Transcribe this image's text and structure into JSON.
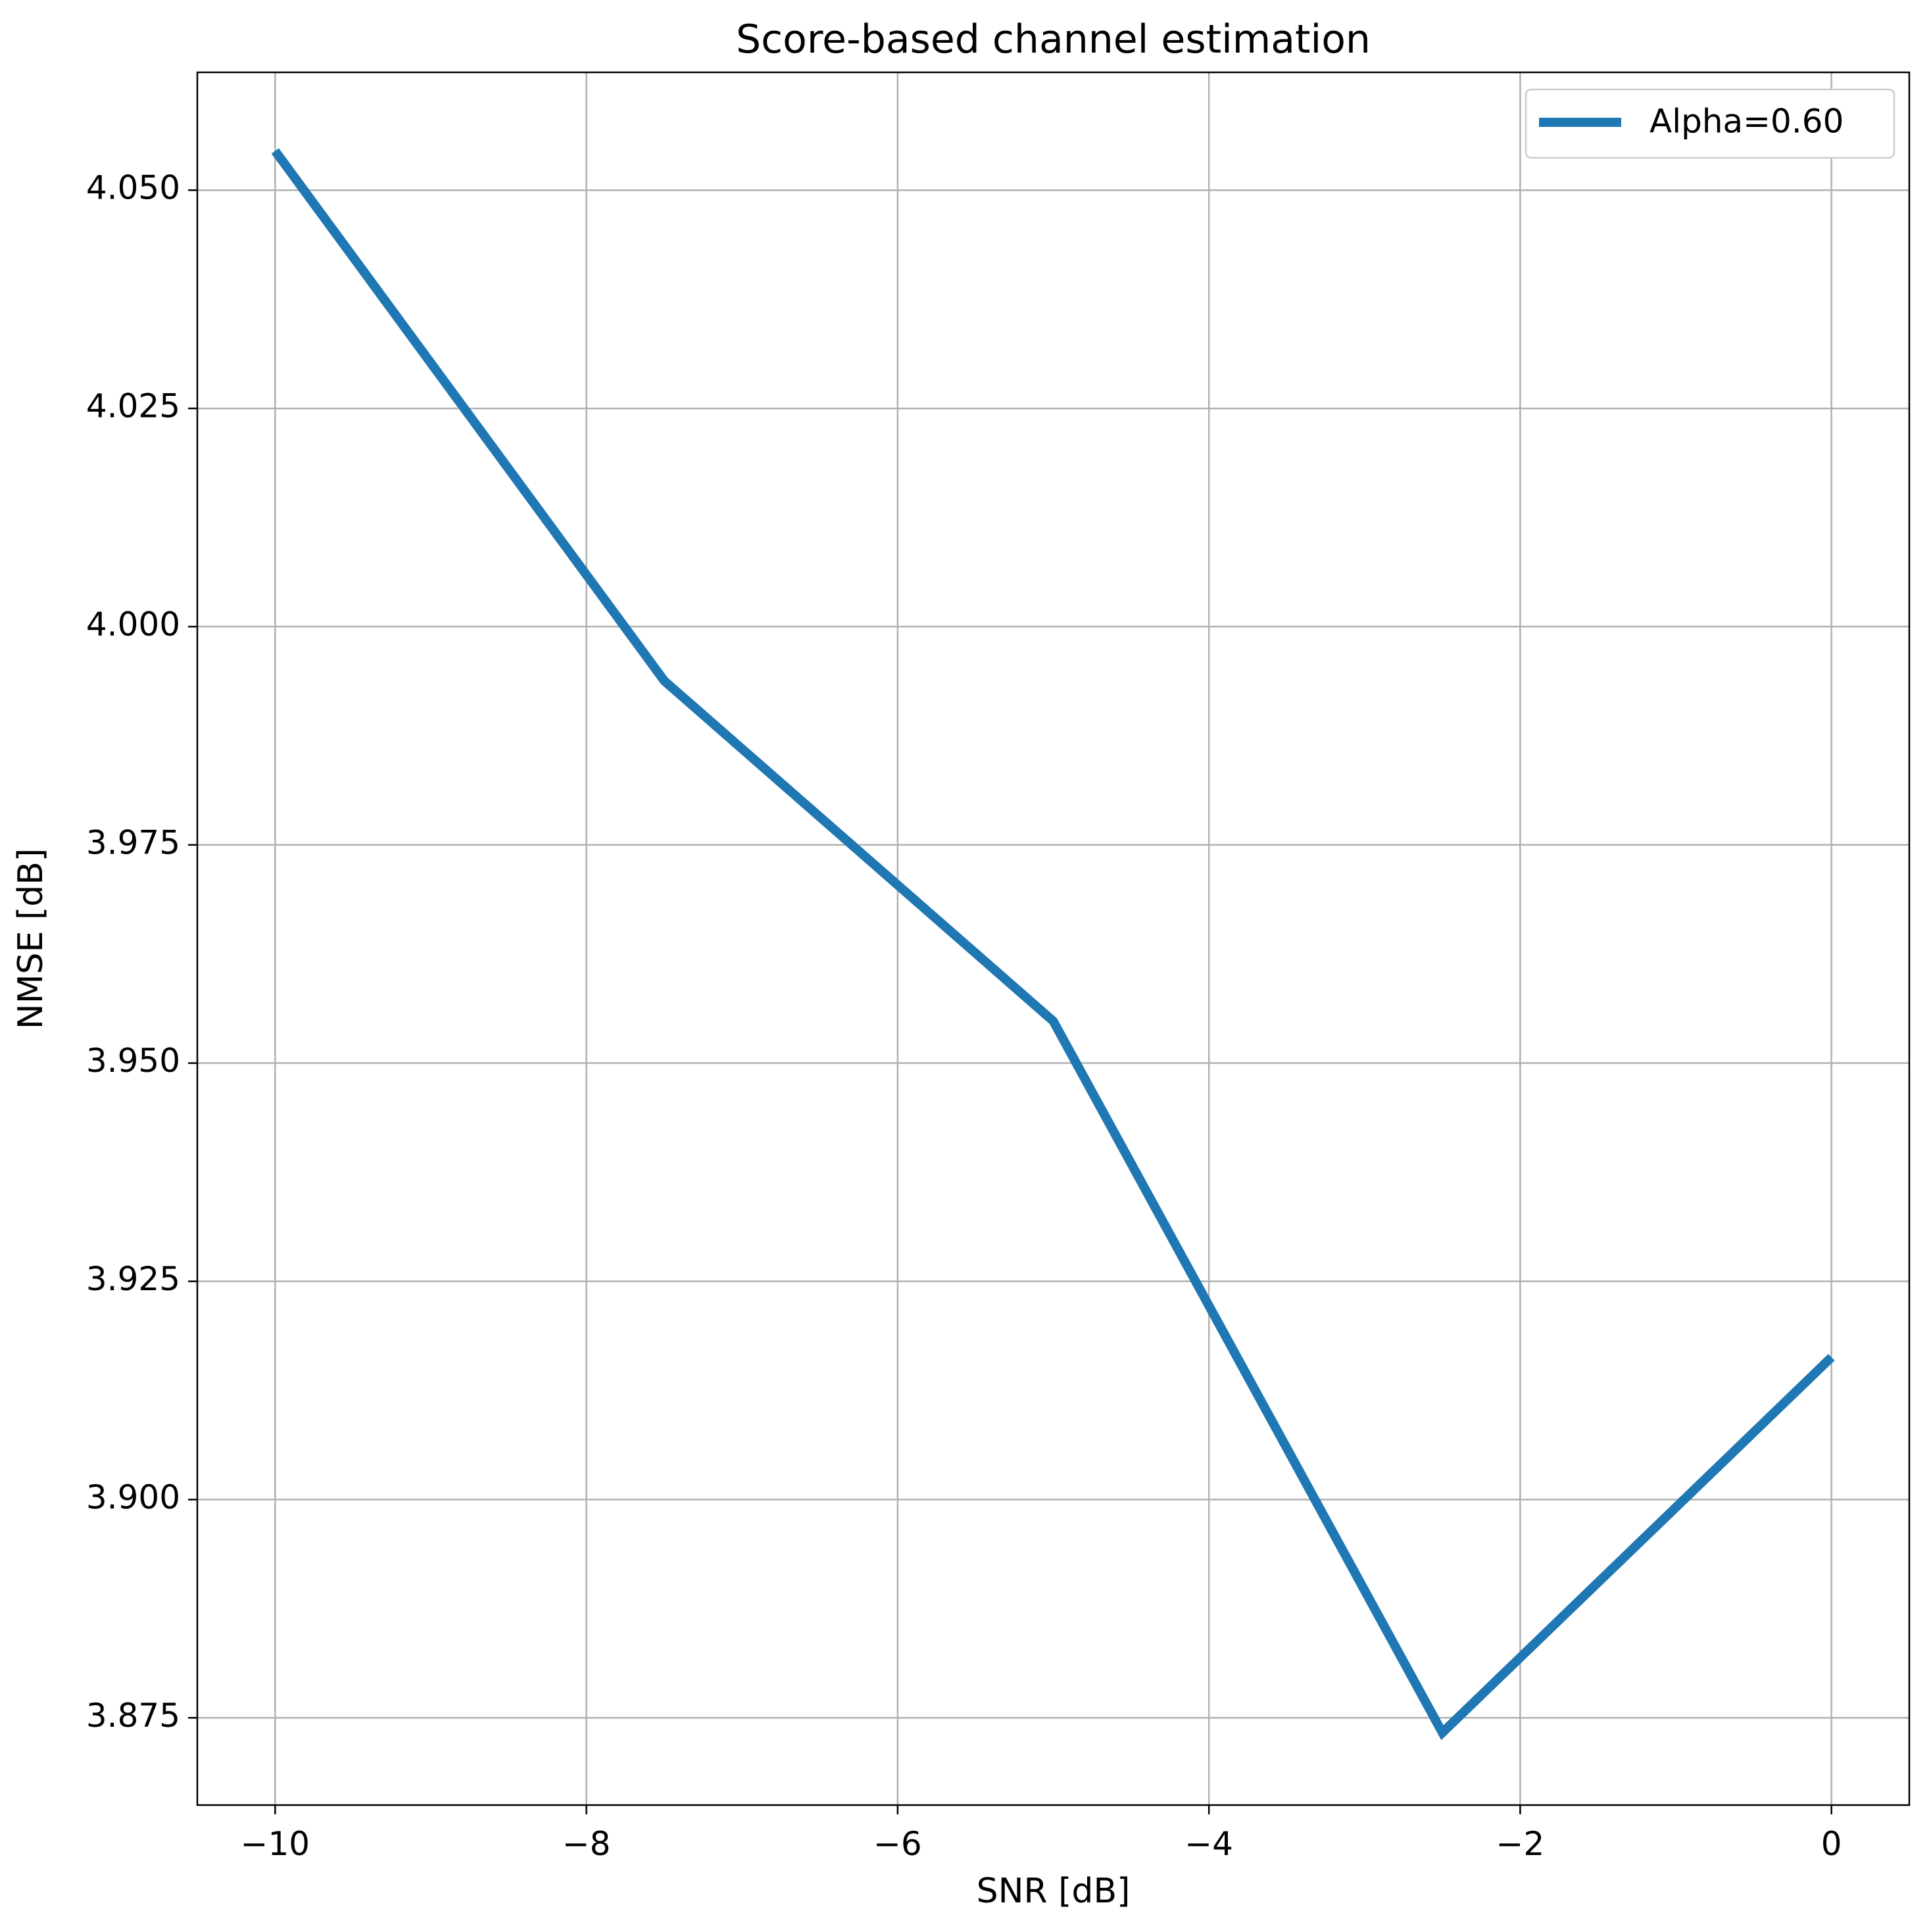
{
  "chart_data": {
    "type": "line",
    "title": "Score-based channel estimation",
    "xlabel": "SNR [dB]",
    "ylabel": "NMSE [dB]",
    "xlim": [
      -10.5,
      0.5
    ],
    "ylim": [
      3.865,
      4.0635
    ],
    "x_ticks": [
      {
        "value": -10,
        "label": "−10"
      },
      {
        "value": -8,
        "label": "−8"
      },
      {
        "value": -6,
        "label": "−6"
      },
      {
        "value": -4,
        "label": "−4"
      },
      {
        "value": -2,
        "label": "−2"
      },
      {
        "value": 0,
        "label": "0"
      }
    ],
    "y_ticks": [
      {
        "value": 3.875,
        "label": "3.875"
      },
      {
        "value": 3.9,
        "label": "3.900"
      },
      {
        "value": 3.925,
        "label": "3.925"
      },
      {
        "value": 3.95,
        "label": "3.950"
      },
      {
        "value": 3.975,
        "label": "3.975"
      },
      {
        "value": 4.0,
        "label": "4.000"
      },
      {
        "value": 4.025,
        "label": "4.025"
      },
      {
        "value": 4.05,
        "label": "4.050"
      }
    ],
    "grid": true,
    "legend_position": "top-right",
    "series": [
      {
        "name": "Alpha=0.60",
        "color": "#1f77b4",
        "x": [
          -10,
          -7.5,
          -5,
          -2.5,
          0
        ],
        "y": [
          4.0545,
          3.9938,
          3.9548,
          3.8733,
          3.9163
        ]
      }
    ]
  }
}
